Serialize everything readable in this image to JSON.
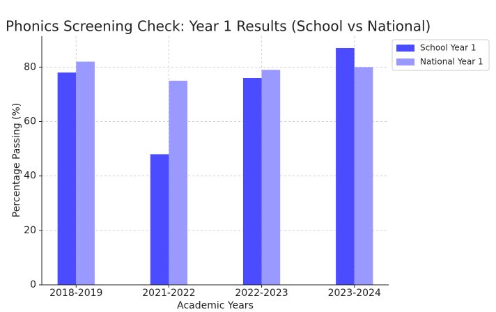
{
  "chart_data": {
    "type": "bar",
    "title": "Phonics Screening Check: Year 1 Results (School vs National)",
    "x_label": "Academic Years",
    "y_label": "Percentage Passing (%)",
    "categories": [
      "2018-2019",
      "2021-2022",
      "2022-2023",
      "2023-2024"
    ],
    "series": [
      {
        "name": "School Year 1",
        "color": "#4b4bff",
        "values": [
          78,
          48,
          76,
          87
        ]
      },
      {
        "name": "National Year 1",
        "color": "#9999ff",
        "values": [
          82,
          75,
          79,
          80
        ]
      }
    ],
    "ylim": [
      0,
      91.35
    ],
    "yticks": [
      0,
      20,
      40,
      60,
      80
    ],
    "grid": true,
    "legend": "upper right"
  }
}
